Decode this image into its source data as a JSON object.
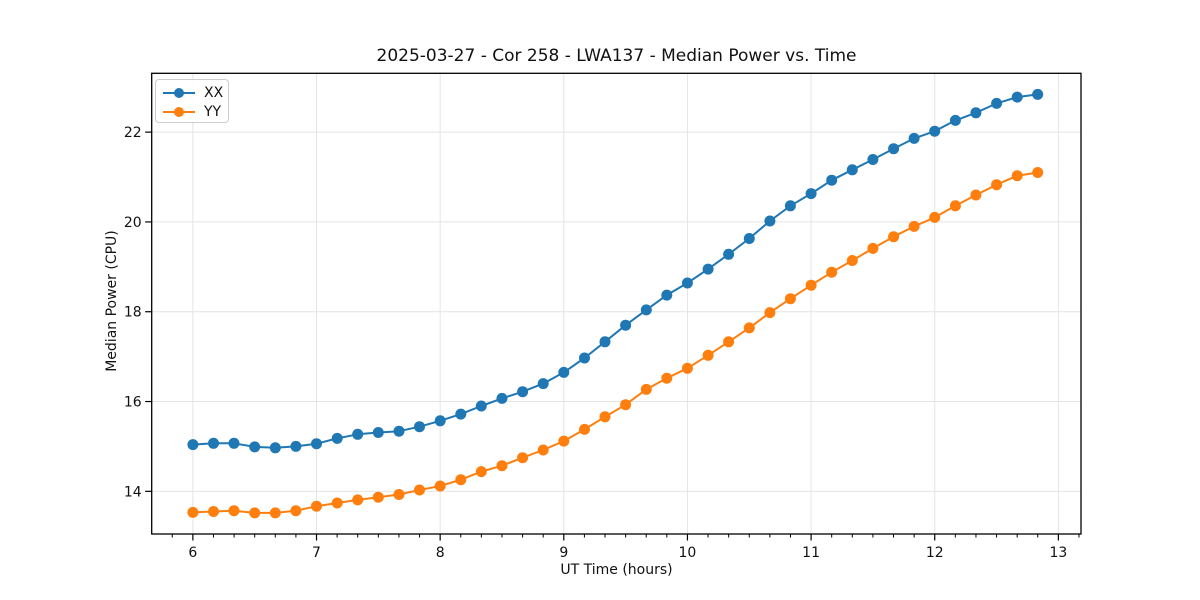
{
  "title": "2025-03-27 - Cor 258 - LWA137 - Median Power vs. Time",
  "chart_data": {
    "type": "line",
    "title": "2025-03-27 - Cor 258 - LWA137 - Median Power vs. Time",
    "xlabel": "UT Time (hours)",
    "ylabel": "Median Power (CPU)",
    "xlim": [
      5.667,
      13.183
    ],
    "ylim": [
      13.05,
      23.31
    ],
    "xticks": [
      6,
      7,
      8,
      9,
      10,
      11,
      12,
      13
    ],
    "yticks": [
      14,
      16,
      18,
      20,
      22
    ],
    "x_minor_step": 0.166667,
    "grid": true,
    "grid_color": "#e4e4e4",
    "legend_position": "upper-left",
    "marker": "circle",
    "x": [
      6.0,
      6.167,
      6.333,
      6.5,
      6.667,
      6.833,
      7.0,
      7.167,
      7.333,
      7.5,
      7.667,
      7.833,
      8.0,
      8.167,
      8.333,
      8.5,
      8.667,
      8.833,
      9.0,
      9.167,
      9.333,
      9.5,
      9.667,
      9.833,
      10.0,
      10.167,
      10.333,
      10.5,
      10.667,
      10.833,
      11.0,
      11.167,
      11.333,
      11.5,
      11.667,
      11.833,
      12.0,
      12.167,
      12.333,
      12.5,
      12.667,
      12.833
    ],
    "series": [
      {
        "name": "XX",
        "color": "#1f77b4",
        "values": [
          15.04,
          15.07,
          15.07,
          14.99,
          14.97,
          15.0,
          15.06,
          15.18,
          15.27,
          15.31,
          15.34,
          15.44,
          15.57,
          15.72,
          15.9,
          16.07,
          16.22,
          16.4,
          16.65,
          16.97,
          17.33,
          17.7,
          18.04,
          18.37,
          18.64,
          18.95,
          19.28,
          19.63,
          20.02,
          20.36,
          20.63,
          20.93,
          21.16,
          21.39,
          21.63,
          21.86,
          22.02,
          22.26,
          22.43,
          22.64,
          22.78,
          22.84
        ]
      },
      {
        "name": "YY",
        "color": "#ff7f0e",
        "values": [
          13.53,
          13.55,
          13.57,
          13.52,
          13.52,
          13.57,
          13.67,
          13.74,
          13.81,
          13.87,
          13.93,
          14.03,
          14.12,
          14.26,
          14.44,
          14.57,
          14.75,
          14.92,
          15.12,
          15.38,
          15.66,
          15.93,
          16.27,
          16.52,
          16.74,
          17.03,
          17.33,
          17.64,
          17.98,
          18.29,
          18.59,
          18.88,
          19.14,
          19.41,
          19.67,
          19.9,
          20.1,
          20.36,
          20.6,
          20.83,
          21.03,
          21.1
        ]
      }
    ]
  }
}
